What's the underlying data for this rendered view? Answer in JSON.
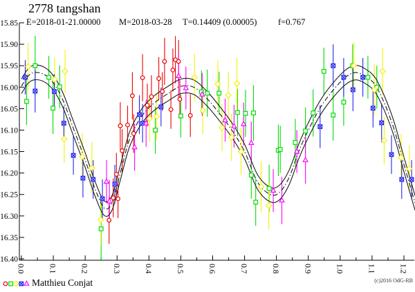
{
  "header": {
    "title": "2778 tangshan",
    "epoch": "E=2018-01-21.00000",
    "mean_date": "M=2018-03-28",
    "period": "T=0.14409 (0.00005)",
    "flux_ratio": "f=0.767"
  },
  "footer": {
    "attribution": "Matthieu Conjat",
    "copyright": "(c)2016 OdG-RB"
  },
  "chart_data": {
    "type": "scatter",
    "title": "2778 tangshan",
    "xlabel": "",
    "ylabel": "",
    "grid": false,
    "y_axis_inverted": true,
    "xlim": [
      0.0,
      1.235
    ],
    "ylim": [
      16.4,
      15.85
    ],
    "x_tick_labels": [
      "0.0",
      "0.1",
      "0.2",
      "0.3",
      "0.4",
      "0.5",
      "0.6",
      "0.7",
      "0.8",
      "0.9",
      "1.0",
      "1.1",
      "1.2"
    ],
    "x_ticks": [
      0.0,
      0.1,
      0.2,
      0.3,
      0.4,
      0.5,
      0.6,
      0.7,
      0.8,
      0.9,
      1.0,
      1.1,
      1.2
    ],
    "x_minor_ticks": [
      0.05,
      0.15,
      0.25,
      0.35,
      0.45,
      0.55,
      0.65,
      0.75,
      0.85,
      0.95,
      1.05,
      1.15
    ],
    "y_tick_labels": [
      "15.85",
      "15.90",
      "15.95",
      "16.00",
      "16.05",
      "16.10",
      "16.15",
      "16.20",
      "16.25",
      "16.30",
      "16.35",
      "16.40"
    ],
    "y_ticks": [
      15.85,
      15.9,
      15.95,
      16.0,
      16.05,
      16.1,
      16.15,
      16.2,
      16.25,
      16.3,
      16.35,
      16.4
    ],
    "fit_curve": {
      "color": "#1a1a1a",
      "band_halfwidth_mag": 0.017,
      "mid_style": "dash-dot",
      "outer_style": "solid",
      "points": [
        [
          0.0,
          15.998
        ],
        [
          0.02,
          15.975
        ],
        [
          0.04,
          15.966
        ],
        [
          0.07,
          15.97
        ],
        [
          0.1,
          15.99
        ],
        [
          0.13,
          16.03
        ],
        [
          0.16,
          16.09
        ],
        [
          0.2,
          16.17
        ],
        [
          0.23,
          16.235
        ],
        [
          0.26,
          16.282
        ],
        [
          0.285,
          16.268
        ],
        [
          0.31,
          16.2
        ],
        [
          0.34,
          16.12
        ],
        [
          0.38,
          16.065
        ],
        [
          0.42,
          16.035
        ],
        [
          0.46,
          16.015
        ],
        [
          0.5,
          15.998
        ],
        [
          0.54,
          16.0
        ],
        [
          0.58,
          16.025
        ],
        [
          0.62,
          16.06
        ],
        [
          0.66,
          16.1
        ],
        [
          0.7,
          16.15
        ],
        [
          0.74,
          16.22
        ],
        [
          0.78,
          16.25
        ],
        [
          0.81,
          16.245
        ],
        [
          0.84,
          16.21
        ],
        [
          0.87,
          16.15
        ],
        [
          0.9,
          16.1
        ],
        [
          0.94,
          16.045
        ],
        [
          0.98,
          16.005
        ],
        [
          1.02,
          15.975
        ],
        [
          1.05,
          15.966
        ],
        [
          1.08,
          15.975
        ],
        [
          1.11,
          15.995
        ],
        [
          1.14,
          16.04
        ],
        [
          1.17,
          16.1
        ],
        [
          1.2,
          16.18
        ],
        [
          1.235,
          16.27
        ]
      ]
    },
    "series": [
      {
        "name": "red circles",
        "marker": "circle",
        "color": "#ee0000",
        "points": [
          [
            0.275,
            16.31,
            0.055
          ],
          [
            0.288,
            16.258,
            0.045
          ],
          [
            0.298,
            16.203,
            0.05
          ],
          [
            0.303,
            16.26,
            0.045
          ],
          [
            0.31,
            16.09,
            0.055
          ],
          [
            0.316,
            16.148,
            0.05
          ],
          [
            0.333,
            16.088,
            0.045
          ],
          [
            0.348,
            16.02,
            0.055
          ],
          [
            0.352,
            16.108,
            0.045
          ],
          [
            0.38,
            15.978,
            0.055
          ],
          [
            0.395,
            16.042,
            0.05
          ],
          [
            0.408,
            16.022,
            0.05
          ],
          [
            0.431,
            15.98,
            0.05
          ],
          [
            0.442,
            16.01,
            0.045
          ],
          [
            0.449,
            15.94,
            0.055
          ],
          [
            0.469,
            16.052,
            0.045
          ],
          [
            0.475,
            15.96,
            0.05
          ],
          [
            0.483,
            15.936,
            0.055
          ],
          [
            0.493,
            15.94,
            0.05
          ],
          [
            0.497,
            16.028,
            0.045
          ],
          [
            0.53,
            16.066,
            0.05
          ]
        ]
      },
      {
        "name": "green squares",
        "marker": "square",
        "color": "#00dd00",
        "points": [
          [
            0.016,
            16.033,
            0.055
          ],
          [
            0.043,
            15.95,
            0.07
          ],
          [
            0.086,
            15.977,
            0.05
          ],
          [
            0.099,
            16.049,
            0.06
          ],
          [
            0.12,
            15.999,
            0.05
          ],
          [
            0.25,
            16.33,
            0.075
          ],
          [
            0.42,
            16.1,
            0.055
          ],
          [
            0.5,
            16.067,
            0.05
          ],
          [
            0.565,
            16.011,
            0.05
          ],
          [
            0.583,
            16.014,
            0.055
          ],
          [
            0.62,
            16.014,
            0.05
          ],
          [
            0.678,
            16.059,
            0.055
          ],
          [
            0.703,
            16.061,
            0.055
          ],
          [
            0.721,
            16.205,
            0.055
          ],
          [
            0.728,
            16.06,
            0.065
          ],
          [
            0.735,
            16.268,
            0.055
          ],
          [
            0.777,
            16.236,
            0.055
          ],
          [
            0.806,
            16.147,
            0.06
          ],
          [
            0.812,
            16.145,
            0.055
          ],
          [
            0.859,
            16.129,
            0.055
          ],
          [
            0.891,
            16.102,
            0.055
          ],
          [
            0.915,
            16.06,
            0.055
          ],
          [
            0.949,
            15.963,
            0.055
          ],
          [
            0.978,
            16.065,
            0.06
          ],
          [
            1.011,
            16.035,
            0.055
          ],
          [
            1.039,
            15.95,
            0.05
          ],
          [
            1.087,
            15.977,
            0.05
          ],
          [
            1.115,
            16.0,
            0.05
          ]
        ]
      },
      {
        "name": "yellow diamonds",
        "marker": "diamond",
        "color": "#f2f200",
        "points": [
          [
            0.021,
            15.952,
            0.055
          ],
          [
            0.104,
            15.982,
            0.05
          ],
          [
            0.134,
            16.121,
            0.055
          ],
          [
            0.137,
            15.963,
            0.05
          ],
          [
            0.191,
            16.162,
            0.055
          ],
          [
            0.221,
            16.188,
            0.06
          ],
          [
            0.249,
            16.309,
            0.06
          ],
          [
            0.402,
            16.073,
            0.055
          ],
          [
            0.424,
            16.068,
            0.055
          ],
          [
            0.543,
            15.977,
            0.055
          ],
          [
            0.569,
            16.054,
            0.055
          ],
          [
            0.616,
            15.993,
            0.055
          ],
          [
            0.629,
            16.094,
            0.055
          ],
          [
            0.649,
            16.019,
            0.055
          ],
          [
            0.659,
            16.117,
            0.055
          ],
          [
            0.676,
            15.991,
            0.06
          ],
          [
            0.689,
            16.15,
            0.055
          ],
          [
            0.752,
            16.232,
            0.06
          ],
          [
            0.776,
            16.276,
            0.055
          ],
          [
            1.043,
            15.95,
            0.055
          ],
          [
            1.107,
            16.006,
            0.06
          ],
          [
            1.133,
            15.963,
            0.055
          ],
          [
            1.138,
            16.124,
            0.055
          ],
          [
            1.191,
            16.164,
            0.055
          ],
          [
            1.217,
            16.19,
            0.055
          ]
        ]
      },
      {
        "name": "blue crossed squares",
        "marker": "square-x",
        "color": "#2222ee",
        "points": [
          [
            0.012,
            15.977,
            0.04
          ],
          [
            0.043,
            16.009,
            0.05
          ],
          [
            0.103,
            16.01,
            0.04
          ],
          [
            0.133,
            16.084,
            0.04
          ],
          [
            0.163,
            16.159,
            0.045
          ],
          [
            0.193,
            16.212,
            0.045
          ],
          [
            0.225,
            16.215,
            0.045
          ],
          [
            0.254,
            16.26,
            0.045
          ],
          [
            0.293,
            16.226,
            0.045
          ],
          [
            0.37,
            16.064,
            0.045
          ],
          [
            0.38,
            16.084,
            0.045
          ],
          [
            0.438,
            16.046,
            0.045
          ],
          [
            0.937,
            16.092,
            0.05
          ],
          [
            0.978,
            15.95,
            0.05
          ],
          [
            1.011,
            15.977,
            0.045
          ],
          [
            1.04,
            16.006,
            0.05
          ],
          [
            1.071,
            15.977,
            0.045
          ],
          [
            1.103,
            16.049,
            0.045
          ],
          [
            1.13,
            16.083,
            0.045
          ],
          [
            1.161,
            16.157,
            0.045
          ],
          [
            1.193,
            16.215,
            0.045
          ],
          [
            1.224,
            16.215,
            0.045
          ]
        ]
      },
      {
        "name": "magenta triangles",
        "marker": "triangle",
        "color": "#ff00ff",
        "points": [
          [
            0.267,
            16.22,
            0.05
          ],
          [
            0.276,
            16.266,
            0.05
          ],
          [
            0.355,
            16.14,
            0.055
          ],
          [
            0.391,
            16.084,
            0.055
          ],
          [
            0.493,
            15.974,
            0.055
          ],
          [
            0.516,
            16.002,
            0.05
          ],
          [
            0.567,
            16.017,
            0.05
          ],
          [
            0.639,
            16.077,
            0.05
          ],
          [
            0.667,
            16.091,
            0.05
          ],
          [
            0.697,
            16.086,
            0.05
          ],
          [
            0.721,
            16.13,
            0.05
          ],
          [
            0.79,
            16.241,
            0.05
          ],
          [
            0.817,
            16.264,
            0.055
          ],
          [
            0.864,
            16.15,
            0.05
          ],
          [
            0.891,
            16.17,
            0.055
          ]
        ]
      }
    ]
  }
}
